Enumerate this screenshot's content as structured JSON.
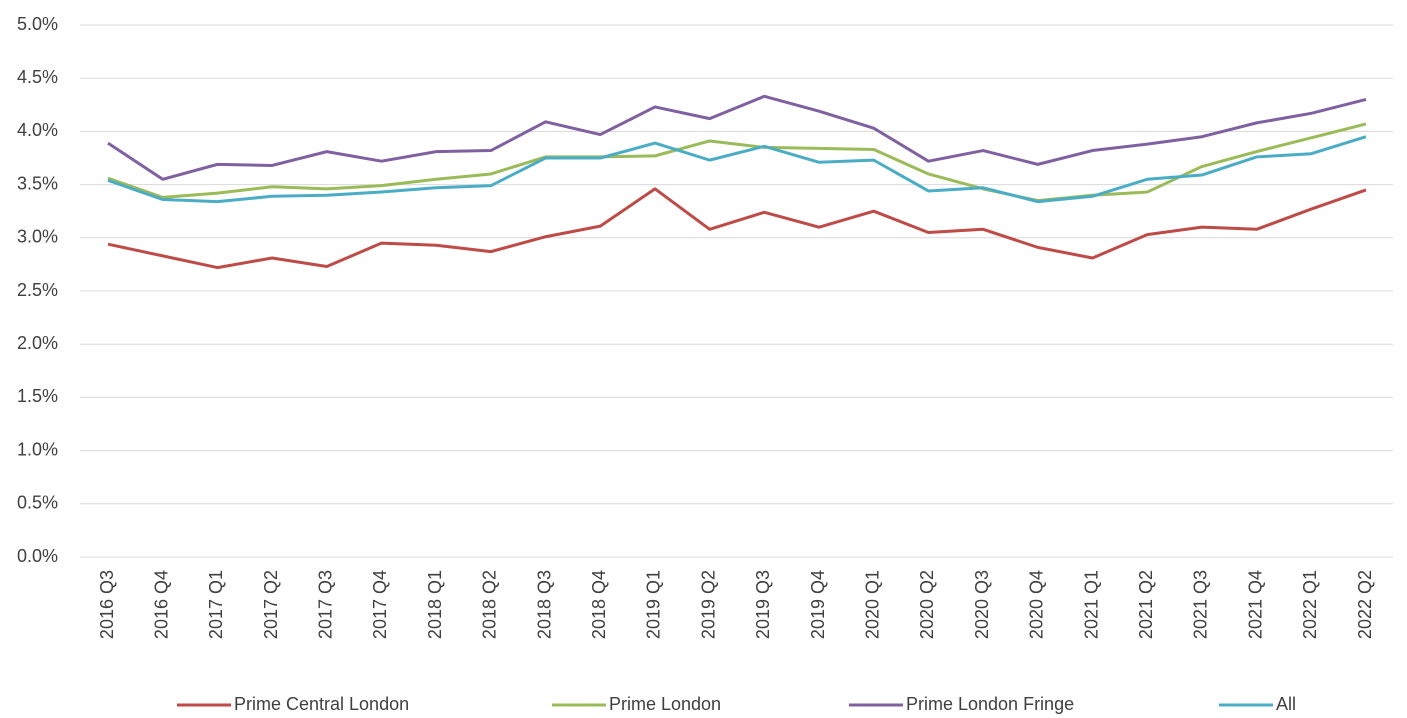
{
  "chart_data": {
    "type": "line",
    "categories": [
      "2016 Q3",
      "2016 Q4",
      "2017 Q1",
      "2017 Q2",
      "2017 Q3",
      "2017 Q4",
      "2018 Q1",
      "2018 Q2",
      "2018 Q3",
      "2018 Q4",
      "2019 Q1",
      "2019 Q2",
      "2019 Q3",
      "2019 Q4",
      "2020 Q1",
      "2020 Q2",
      "2020 Q3",
      "2020 Q4",
      "2021 Q1",
      "2021 Q2",
      "2021 Q3",
      "2021 Q4",
      "2022 Q1",
      "2022 Q2"
    ],
    "series": [
      {
        "name": "Prime Central London",
        "color": "#be4b48",
        "values": [
          2.94,
          2.83,
          2.72,
          2.81,
          2.73,
          2.95,
          2.93,
          2.87,
          3.01,
          3.11,
          3.46,
          3.08,
          3.24,
          3.1,
          3.25,
          3.05,
          3.08,
          2.91,
          2.81,
          3.03,
          3.1,
          3.08,
          3.27,
          3.45
        ]
      },
      {
        "name": "Prime London",
        "color": "#9bbb59",
        "values": [
          3.56,
          3.38,
          3.42,
          3.48,
          3.46,
          3.49,
          3.55,
          3.6,
          3.76,
          3.76,
          3.77,
          3.91,
          3.85,
          3.84,
          3.83,
          3.6,
          3.46,
          3.35,
          3.4,
          3.43,
          3.67,
          3.81,
          3.94,
          4.07
        ]
      },
      {
        "name": "Prime London Fringe",
        "color": "#7f60a0",
        "values": [
          3.89,
          3.55,
          3.69,
          3.68,
          3.81,
          3.72,
          3.81,
          3.82,
          4.09,
          3.97,
          4.23,
          4.12,
          4.33,
          4.19,
          4.03,
          3.72,
          3.82,
          3.69,
          3.82,
          3.88,
          3.95,
          4.08,
          4.17,
          4.3
        ]
      },
      {
        "name": "All",
        "color": "#4bacc6",
        "values": [
          3.54,
          3.36,
          3.34,
          3.39,
          3.4,
          3.43,
          3.47,
          3.49,
          3.75,
          3.75,
          3.89,
          3.73,
          3.86,
          3.71,
          3.73,
          3.44,
          3.47,
          3.34,
          3.39,
          3.55,
          3.59,
          3.76,
          3.79,
          3.95
        ]
      }
    ],
    "ylim": [
      0,
      5
    ],
    "yticks": [
      {
        "value": 0,
        "label": "0.0%"
      },
      {
        "value": 0.5,
        "label": "0.5%"
      },
      {
        "value": 1,
        "label": "1.0%"
      },
      {
        "value": 1.5,
        "label": "1.5%"
      },
      {
        "value": 2,
        "label": "2.0%"
      },
      {
        "value": 2.5,
        "label": "2.5%"
      },
      {
        "value": 3,
        "label": "3.0%"
      },
      {
        "value": 3.5,
        "label": "3.5%"
      },
      {
        "value": 4,
        "label": "4.0%"
      },
      {
        "value": 4.5,
        "label": "4.5%"
      },
      {
        "value": 5,
        "label": "5.0%"
      }
    ],
    "grid": true,
    "legend": "bottom"
  }
}
